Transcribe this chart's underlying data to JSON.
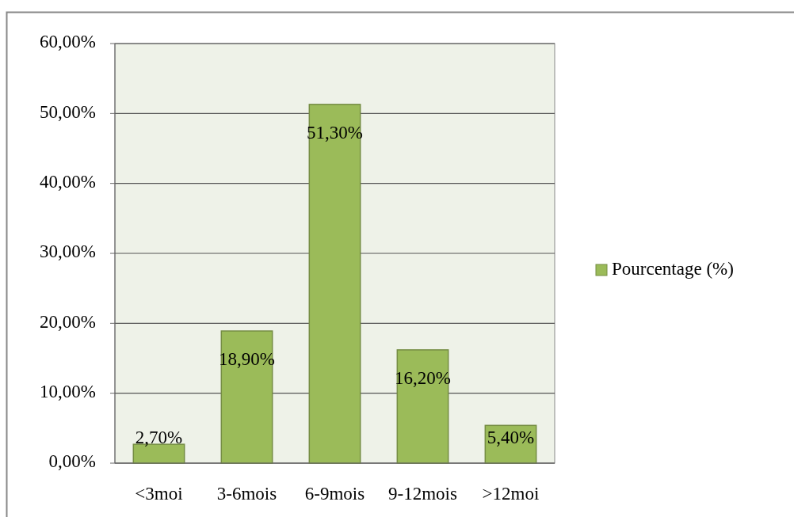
{
  "chart_data": {
    "type": "bar",
    "categories": [
      "<3moi",
      "3-6mois",
      "6-9mois",
      "9-12mois",
      ">12moi"
    ],
    "series": [
      {
        "name": "Pourcentage (%)",
        "color": "#9bbb59",
        "values": [
          2.7,
          18.9,
          51.3,
          16.2,
          5.4
        ],
        "value_labels": [
          "2,70%",
          "18,90%",
          "51,30%",
          "16,20%",
          "5,40%"
        ]
      }
    ],
    "ylim": [
      0,
      60
    ],
    "yticks": [
      {
        "value": 0,
        "label": "0,00%"
      },
      {
        "value": 10,
        "label": "10,00%"
      },
      {
        "value": 20,
        "label": "20,00%"
      },
      {
        "value": 30,
        "label": "30,00%"
      },
      {
        "value": 40,
        "label": "40,00%"
      },
      {
        "value": 50,
        "label": "50,00%"
      },
      {
        "value": 60,
        "label": "60,00%"
      }
    ],
    "grid": "y",
    "legend": "right"
  }
}
